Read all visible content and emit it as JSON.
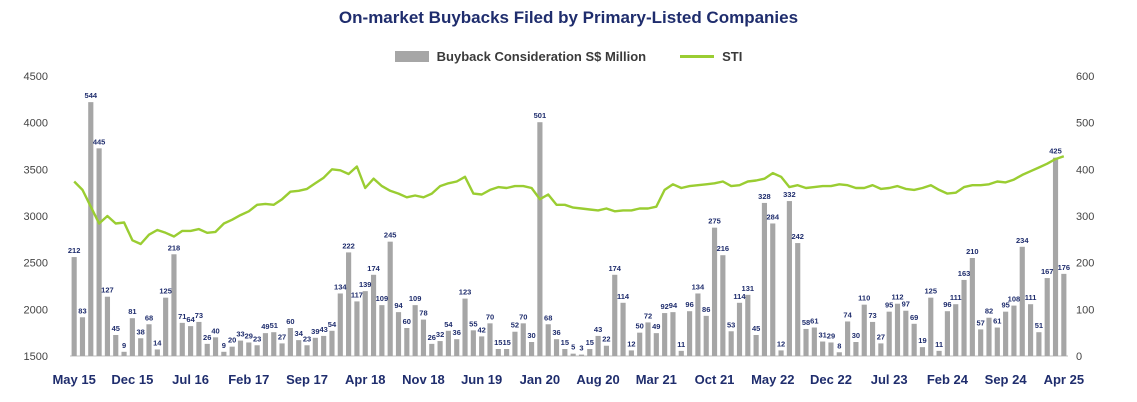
{
  "colors": {
    "bars": "#a6a6a6",
    "line": "#9acd32",
    "title": "#1f2d6d",
    "labels": "#1f2d6d",
    "axis_text": "#444444"
  },
  "chart_data": {
    "type": "bar",
    "title": "On-market Buybacks Filed by Primary-Listed Companies",
    "legend_position": "top-center",
    "grid": false,
    "y_left": {
      "ylim": [
        1500,
        4500
      ],
      "ticks": [
        1500,
        2000,
        2500,
        3000,
        3500,
        4000,
        4500
      ],
      "tick_labels": [
        "1500",
        "2000",
        "2500",
        "3000",
        "3500",
        "4000",
        "4500"
      ]
    },
    "y_right": {
      "ylim": [
        0,
        600
      ],
      "ticks": [
        0,
        100,
        200,
        300,
        400,
        500,
        600
      ],
      "tick_labels": [
        "0",
        "100",
        "200",
        "300",
        "400",
        "500",
        "600"
      ]
    },
    "x_tick_labels": [
      "May 15",
      "Dec 15",
      "Jul 16",
      "Feb 17",
      "Sep 17",
      "Apr 18",
      "Nov 18",
      "Jun 19",
      "Jan 20",
      "Aug 20",
      "Mar 21",
      "Oct 21",
      "May 22",
      "Dec 22",
      "Jul 23",
      "Feb 24",
      "Sep 24",
      "Apr 25"
    ],
    "x_tick_index": [
      0,
      7,
      14,
      21,
      28,
      35,
      42,
      49,
      56,
      63,
      70,
      77,
      84,
      91,
      98,
      105,
      112,
      119
    ],
    "series": [
      {
        "name": "Buyback Consideration S$ Million",
        "axis": "right",
        "type": "bar",
        "values": [
          212,
          83,
          544,
          445,
          127,
          45,
          9,
          81,
          38,
          68,
          14,
          125,
          218,
          71,
          64,
          73,
          26,
          40,
          9,
          20,
          33,
          29,
          23,
          49,
          51,
          27,
          60,
          34,
          23,
          39,
          43,
          54,
          134,
          222,
          117,
          139,
          174,
          109,
          245,
          94,
          60,
          109,
          78,
          26,
          32,
          54,
          36,
          123,
          55,
          42,
          70,
          15,
          15,
          52,
          70,
          30,
          501,
          68,
          36,
          15,
          5,
          3,
          15,
          43,
          22,
          174,
          114,
          12,
          50,
          72,
          49,
          92,
          94,
          11,
          96,
          134,
          86,
          275,
          216,
          53,
          114,
          131,
          45,
          328,
          284,
          12,
          332,
          242,
          58,
          61,
          31,
          29,
          8,
          74,
          30,
          110,
          73,
          27,
          95,
          112,
          97,
          69,
          19,
          125,
          11,
          96,
          111,
          163,
          210,
          57,
          82,
          61,
          95,
          108,
          234,
          111,
          51,
          167,
          425,
          176
        ]
      },
      {
        "name": "STI",
        "axis": "left",
        "type": "line",
        "values": [
          3370,
          3280,
          3100,
          2920,
          3000,
          2920,
          2930,
          2740,
          2700,
          2800,
          2850,
          2820,
          2780,
          2840,
          2840,
          2860,
          2820,
          2830,
          2920,
          2960,
          3010,
          3050,
          3120,
          3130,
          3120,
          3180,
          3260,
          3270,
          3290,
          3350,
          3410,
          3500,
          3490,
          3450,
          3530,
          3300,
          3400,
          3320,
          3270,
          3240,
          3200,
          3220,
          3200,
          3240,
          3320,
          3350,
          3370,
          3420,
          3240,
          3230,
          3280,
          3310,
          3300,
          3320,
          3320,
          3300,
          3180,
          3230,
          3120,
          3120,
          3090,
          3080,
          3070,
          3060,
          3080,
          3050,
          3060,
          3060,
          3080,
          3080,
          3100,
          3280,
          3340,
          3300,
          3320,
          3330,
          3340,
          3350,
          3370,
          3320,
          3330,
          3370,
          3380,
          3400,
          3460,
          3420,
          3310,
          3330,
          3300,
          3310,
          3320,
          3320,
          3340,
          3330,
          3300,
          3300,
          3330,
          3290,
          3300,
          3320,
          3290,
          3280,
          3300,
          3330,
          3280,
          3240,
          3250,
          3310,
          3330,
          3330,
          3340,
          3370,
          3360,
          3390,
          3440,
          3480,
          3520,
          3560,
          3610,
          3640
        ]
      }
    ]
  }
}
